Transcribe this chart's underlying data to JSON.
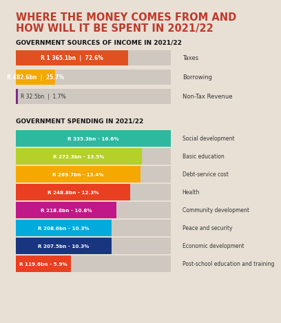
{
  "title_line1": "WHERE THE MONEY COMES FROM AND",
  "title_line2": "HOW WILL IT BE SPENT IN 2021/22",
  "title_color": "#c0392b",
  "bg_color": "#e8e0d5",
  "income_section_title": "GOVERNMENT SOURCES OF INCOME IN 2021/22",
  "income_bars": [
    {
      "label": "Taxes",
      "value": "R 1 365.1bn  |  72.6%",
      "pct": 72.6,
      "color": "#e05020",
      "text_in_bar": true
    },
    {
      "label": "Borrowing",
      "value": "R 482.6bn  |  25.7%",
      "pct": 25.7,
      "color": "#f5a800",
      "text_in_bar": false
    },
    {
      "label": "Non-Tax Revenue",
      "value": "R 32.5bn  |  1.7%",
      "pct": 1.7,
      "color": "#7b2a8c",
      "text_in_bar": false
    }
  ],
  "spending_section_title": "GOVERNMENT SPENDING IN 2021/22",
  "spending_bars": [
    {
      "label": "Social development",
      "value": "R 335.3bn - 16.6%",
      "pct": 16.6,
      "color": "#2db8a0"
    },
    {
      "label": "Basic education",
      "value": "R 272.3bn - 13.5%",
      "pct": 13.5,
      "color": "#b5d028"
    },
    {
      "label": "Debt-service cost",
      "value": "R 269.7bn - 13.4%",
      "pct": 13.4,
      "color": "#f5a800"
    },
    {
      "label": "Health",
      "value": "R 248.8bn - 12.3%",
      "pct": 12.3,
      "color": "#e84020"
    },
    {
      "label": "Community development",
      "value": "R 218.8bn - 10.8%",
      "pct": 10.8,
      "color": "#c01888"
    },
    {
      "label": "Peace and security",
      "value": "R 208.6bn - 10.3%",
      "pct": 10.3,
      "color": "#00aadd"
    },
    {
      "label": "Economic development",
      "value": "R 207.5bn - 10.3%",
      "pct": 10.3,
      "color": "#1a3580"
    },
    {
      "label": "Post-school education and training",
      "value": "R 119.6bn - 5.9%",
      "pct": 5.9,
      "color": "#e84020"
    }
  ],
  "bar_remainder_color": "#cec8c0",
  "label_color": "#333333",
  "bar_text_color": "#ffffff",
  "section_title_color": "#111111"
}
